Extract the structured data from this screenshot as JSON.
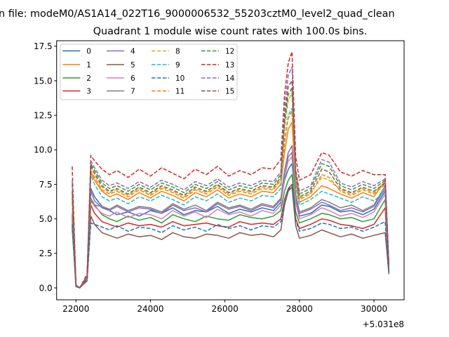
{
  "chart_data": {
    "type": "line",
    "suptitle": "n file: modeM0/AS1A14_022T16_9000006532_55203cztM0_level2_quad_clean",
    "title": "Quadrant 1 module wise count rates with 100.0s bins.",
    "xlabel": "",
    "ylabel": "",
    "x_offset_label": "+5.031e8",
    "xlim": [
      21481,
      30809
    ],
    "ylim": [
      -0.86,
      17.9
    ],
    "xticks": [
      22000,
      24000,
      26000,
      28000,
      30000
    ],
    "yticks": [
      0.0,
      2.5,
      5.0,
      7.5,
      10.0,
      12.5,
      15.0,
      17.5
    ],
    "grid": false,
    "legend_placement": "top-left",
    "legend_columns": 4,
    "x": [
      21900,
      22000,
      22100,
      22300,
      22400,
      22500,
      22700,
      22900,
      23100,
      23400,
      23700,
      24000,
      24300,
      24600,
      24900,
      25200,
      25500,
      25800,
      26100,
      26400,
      26700,
      27000,
      27300,
      27500,
      27600,
      27700,
      27800,
      27900,
      28000,
      28300,
      28600,
      28800,
      29100,
      29400,
      29700,
      30000,
      30300,
      30400
    ],
    "series": [
      {
        "name": "0",
        "color": "#1f77b4",
        "dashed": false,
        "values": [
          4.8,
          0.2,
          0,
          0.7,
          7.2,
          6.6,
          5.9,
          5.6,
          5.3,
          5.5,
          5.2,
          5.6,
          5.4,
          5.8,
          5.3,
          5.6,
          5.5,
          5.9,
          5.4,
          5.7,
          5.5,
          5.8,
          5.6,
          6.2,
          7.8,
          8.6,
          9.0,
          6.4,
          5.2,
          5.4,
          6.0,
          5.9,
          5.5,
          5.6,
          5.3,
          5.7,
          7.0,
          1.3
        ]
      },
      {
        "name": "1",
        "color": "#ff7f0e",
        "dashed": false,
        "values": [
          5.5,
          0.2,
          0,
          0.8,
          8.4,
          7.8,
          7.0,
          6.6,
          6.8,
          6.4,
          6.9,
          6.5,
          7.0,
          6.7,
          6.3,
          6.9,
          6.6,
          7.1,
          6.5,
          6.8,
          6.6,
          7.0,
          6.9,
          7.5,
          9.8,
          11.5,
          12.0,
          7.6,
          6.2,
          6.6,
          7.4,
          7.2,
          6.8,
          6.5,
          6.9,
          6.6,
          7.8,
          1.5
        ]
      },
      {
        "name": "2",
        "color": "#2ca02c",
        "dashed": false,
        "values": [
          5.0,
          0.2,
          0,
          0.7,
          6.5,
          6.0,
          5.3,
          5.0,
          4.8,
          5.2,
          4.9,
          5.1,
          4.7,
          5.3,
          5.0,
          4.8,
          5.2,
          5.0,
          4.9,
          5.3,
          5.1,
          5.0,
          5.2,
          5.6,
          7.0,
          7.8,
          8.2,
          5.5,
          4.7,
          5.0,
          5.4,
          5.3,
          5.0,
          5.1,
          4.8,
          5.0,
          6.4,
          1.2
        ]
      },
      {
        "name": "3",
        "color": "#d62728",
        "dashed": false,
        "values": [
          4.5,
          0.1,
          0,
          0.6,
          6.0,
          5.4,
          4.8,
          4.6,
          4.4,
          4.7,
          4.5,
          4.6,
          4.4,
          4.8,
          4.5,
          4.6,
          4.7,
          4.5,
          4.4,
          4.8,
          4.6,
          4.7,
          4.6,
          5.0,
          6.4,
          7.2,
          7.5,
          5.0,
          4.3,
          4.6,
          5.0,
          4.9,
          4.6,
          4.5,
          4.3,
          4.6,
          5.8,
          1.1
        ]
      },
      {
        "name": "4",
        "color": "#9467bd",
        "dashed": false,
        "values": [
          5.2,
          0.2,
          0,
          0.7,
          7.0,
          6.3,
          5.8,
          5.6,
          5.9,
          5.5,
          5.8,
          5.7,
          5.4,
          6.0,
          5.6,
          5.8,
          5.5,
          6.1,
          5.7,
          5.9,
          5.6,
          6.0,
          5.8,
          6.4,
          8.5,
          9.8,
          10.3,
          6.6,
          5.4,
          5.7,
          6.2,
          6.0,
          5.6,
          5.8,
          5.5,
          5.9,
          7.2,
          1.4
        ]
      },
      {
        "name": "5",
        "color": "#8c564b",
        "dashed": false,
        "values": [
          4.3,
          0.1,
          0,
          0.5,
          5.2,
          4.6,
          4.0,
          3.8,
          3.6,
          3.9,
          3.7,
          3.8,
          3.5,
          4.0,
          3.7,
          3.6,
          3.9,
          3.8,
          3.6,
          4.0,
          3.8,
          3.9,
          3.7,
          4.2,
          6.0,
          7.0,
          7.3,
          4.5,
          3.6,
          3.8,
          4.2,
          4.0,
          3.7,
          3.9,
          3.6,
          3.8,
          4.0,
          1.0
        ]
      },
      {
        "name": "6",
        "color": "#e377c2",
        "dashed": false,
        "values": [
          5.0,
          0.2,
          0,
          0.6,
          6.4,
          5.9,
          5.4,
          5.2,
          5.5,
          5.1,
          5.4,
          5.3,
          5.0,
          5.6,
          5.2,
          5.5,
          5.1,
          5.7,
          5.3,
          5.5,
          5.2,
          5.6,
          5.4,
          6.0,
          8.0,
          9.2,
          9.5,
          6.2,
          5.0,
          5.3,
          5.8,
          5.6,
          5.2,
          5.4,
          5.1,
          5.5,
          6.8,
          1.3
        ]
      },
      {
        "name": "7",
        "color": "#7f7f7f",
        "dashed": false,
        "values": [
          5.3,
          0.2,
          0,
          0.7,
          6.3,
          6.0,
          5.9,
          5.7,
          6.0,
          5.6,
          5.9,
          5.8,
          5.5,
          6.1,
          5.7,
          6.0,
          5.6,
          6.2,
          5.8,
          6.0,
          5.7,
          6.1,
          5.9,
          6.5,
          8.4,
          9.5,
          9.8,
          6.8,
          5.5,
          5.8,
          6.4,
          6.2,
          5.8,
          6.0,
          5.6,
          6.0,
          7.4,
          1.4
        ]
      },
      {
        "name": "8",
        "color": "#bcbd22",
        "dashed": true,
        "values": [
          6.8,
          0.2,
          0,
          0.8,
          8.9,
          8.2,
          7.3,
          6.9,
          7.1,
          6.7,
          7.2,
          6.8,
          7.3,
          7.0,
          6.6,
          7.2,
          6.9,
          7.4,
          6.8,
          7.1,
          6.9,
          7.3,
          7.2,
          7.9,
          11.5,
          13.6,
          14.1,
          8.0,
          6.5,
          6.9,
          8.0,
          7.8,
          7.1,
          6.8,
          7.2,
          6.9,
          7.6,
          1.6
        ]
      },
      {
        "name": "9",
        "color": "#17becf",
        "dashed": true,
        "values": [
          6.2,
          0.2,
          0,
          0.8,
          8.2,
          7.5,
          6.6,
          6.3,
          6.5,
          6.1,
          6.6,
          6.3,
          6.7,
          6.4,
          6.0,
          6.6,
          6.3,
          6.8,
          6.2,
          6.5,
          6.3,
          6.7,
          6.6,
          7.2,
          10.6,
          12.5,
          13.0,
          7.4,
          6.0,
          6.4,
          7.0,
          6.8,
          6.5,
          6.2,
          6.6,
          6.3,
          7.0,
          1.5
        ]
      },
      {
        "name": "10",
        "color": "#1f77b4",
        "dashed": true,
        "values": [
          4.6,
          0.1,
          0,
          0.6,
          4.7,
          4.6,
          4.4,
          4.2,
          4.5,
          4.1,
          4.4,
          4.3,
          4.0,
          4.5,
          4.2,
          4.4,
          4.1,
          4.6,
          4.3,
          4.5,
          4.2,
          4.5,
          4.4,
          4.8,
          6.3,
          7.1,
          7.4,
          4.9,
          4.1,
          4.3,
          4.7,
          4.6,
          4.3,
          4.4,
          4.1,
          4.4,
          4.8,
          1.1
        ]
      },
      {
        "name": "11",
        "color": "#ff7f0e",
        "dashed": true,
        "values": [
          6.5,
          0.2,
          0,
          0.8,
          8.5,
          8.0,
          7.1,
          6.8,
          7.0,
          6.6,
          7.1,
          6.7,
          7.2,
          6.9,
          6.5,
          7.1,
          6.8,
          7.3,
          6.7,
          7.0,
          6.8,
          7.2,
          7.1,
          7.8,
          10.5,
          12.3,
          12.8,
          7.8,
          6.4,
          6.8,
          8.2,
          8.0,
          7.0,
          6.7,
          7.1,
          6.8,
          7.5,
          1.6
        ]
      },
      {
        "name": "12",
        "color": "#2ca02c",
        "dashed": true,
        "values": [
          7.5,
          0.2,
          0,
          0.9,
          9.0,
          8.5,
          7.6,
          7.2,
          7.4,
          7.0,
          7.5,
          7.1,
          7.6,
          7.3,
          6.9,
          7.5,
          7.2,
          7.7,
          7.1,
          7.4,
          7.2,
          7.6,
          7.5,
          8.2,
          12.0,
          14.0,
          14.5,
          8.4,
          6.8,
          7.2,
          9.0,
          8.8,
          7.4,
          7.1,
          7.5,
          7.2,
          7.8,
          1.7
        ]
      },
      {
        "name": "13",
        "color": "#d62728",
        "dashed": true,
        "values": [
          8.8,
          0.2,
          0,
          1.0,
          9.6,
          9.2,
          8.6,
          8.2,
          8.5,
          8.0,
          8.6,
          8.1,
          8.7,
          8.3,
          7.9,
          8.6,
          8.2,
          8.8,
          8.1,
          8.5,
          8.2,
          8.7,
          8.6,
          9.3,
          14.0,
          16.3,
          17.1,
          9.5,
          7.8,
          8.2,
          9.8,
          9.6,
          8.4,
          8.1,
          8.5,
          8.2,
          8.2,
          1.8
        ]
      },
      {
        "name": "14",
        "color": "#9467bd",
        "dashed": true,
        "values": [
          7.8,
          0.2,
          0,
          0.9,
          9.2,
          8.7,
          7.8,
          7.4,
          7.6,
          7.2,
          7.7,
          7.3,
          7.8,
          7.5,
          7.1,
          7.7,
          7.4,
          7.9,
          7.3,
          7.6,
          7.4,
          7.8,
          7.7,
          8.4,
          13.0,
          15.4,
          16.0,
          8.6,
          7.0,
          7.4,
          9.3,
          9.1,
          7.6,
          7.3,
          7.7,
          7.4,
          7.9,
          1.7
        ]
      },
      {
        "name": "15",
        "color": "#8c564b",
        "dashed": true,
        "values": [
          7.0,
          0.2,
          0,
          0.8,
          8.8,
          8.3,
          7.4,
          7.0,
          7.2,
          6.8,
          7.3,
          6.9,
          7.4,
          7.1,
          6.7,
          7.3,
          7.0,
          7.5,
          6.9,
          7.2,
          7.0,
          7.4,
          7.3,
          8.0,
          12.3,
          14.6,
          15.0,
          8.2,
          6.6,
          7.0,
          8.6,
          8.4,
          7.2,
          6.9,
          7.3,
          7.0,
          7.6,
          1.6
        ]
      }
    ]
  }
}
